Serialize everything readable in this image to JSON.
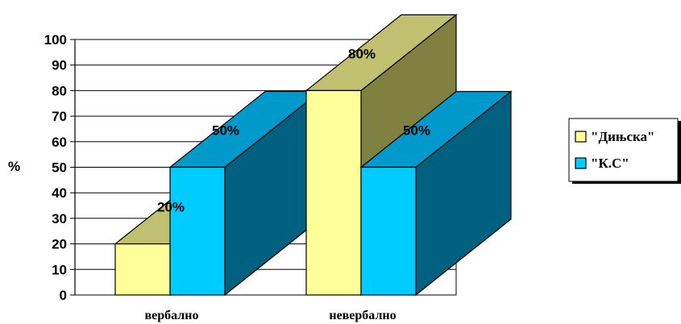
{
  "chart_data": {
    "type": "bar",
    "ylabel": "%",
    "ylim": [
      0,
      100
    ],
    "ytick_step": 10,
    "grid": true,
    "legend_position": "right",
    "categories": [
      "вербално",
      "невербално"
    ],
    "series": [
      {
        "name": "\"Дињска\"",
        "values": [
          20,
          80
        ],
        "labels": [
          "20%",
          "80%"
        ],
        "color": "#ffff99",
        "side_color": "#808040",
        "top_color": "#c0c070"
      },
      {
        "name": "\"К.С\"",
        "values": [
          50,
          50
        ],
        "labels": [
          "50%",
          "50%"
        ],
        "color": "#00ccff",
        "side_color": "#006080",
        "top_color": "#0099cc"
      }
    ]
  }
}
